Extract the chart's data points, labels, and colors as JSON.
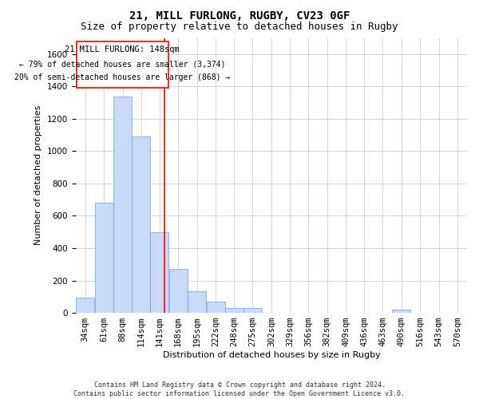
{
  "title": "21, MILL FURLONG, RUGBY, CV23 0GF",
  "subtitle": "Size of property relative to detached houses in Rugby",
  "xlabel": "Distribution of detached houses by size in Rugby",
  "ylabel": "Number of detached properties",
  "footer_line1": "Contains HM Land Registry data © Crown copyright and database right 2024.",
  "footer_line2": "Contains public sector information licensed under the Open Government Licence v3.0.",
  "annotation_line1": "21 MILL FURLONG: 148sqm",
  "annotation_line2": "← 79% of detached houses are smaller (3,374)",
  "annotation_line3": "20% of semi-detached houses are larger (868) →",
  "bar_color": "#c9daf8",
  "bar_edge_color": "#6d9eeb",
  "red_line_x": 148,
  "categories": [
    "34sqm",
    "61sqm",
    "88sqm",
    "114sqm",
    "141sqm",
    "168sqm",
    "195sqm",
    "222sqm",
    "248sqm",
    "275sqm",
    "302sqm",
    "329sqm",
    "356sqm",
    "382sqm",
    "409sqm",
    "436sqm",
    "463sqm",
    "490sqm",
    "516sqm",
    "543sqm",
    "570sqm"
  ],
  "bin_edges": [
    20.5,
    47.5,
    74.5,
    101.5,
    127.5,
    154.5,
    181.5,
    208.5,
    235.5,
    261.5,
    288.5,
    315.5,
    342.5,
    368.5,
    395.5,
    422.5,
    448.5,
    475.5,
    502.5,
    529.5,
    556.5,
    583.5
  ],
  "values": [
    95,
    680,
    1335,
    1090,
    500,
    270,
    135,
    70,
    30,
    30,
    0,
    0,
    0,
    0,
    0,
    0,
    0,
    20,
    0,
    0,
    0
  ],
  "ylim": [
    0,
    1700
  ],
  "yticks": [
    0,
    200,
    400,
    600,
    800,
    1000,
    1200,
    1400,
    1600
  ],
  "bg_color": "#ffffff",
  "grid_color": "#d0d0d0",
  "title_fontsize": 10,
  "subtitle_fontsize": 9,
  "xlabel_fontsize": 8,
  "ylabel_fontsize": 8,
  "tick_fontsize": 7.5,
  "footer_fontsize": 6,
  "annot_fontsize1": 7.5,
  "annot_fontsize2": 7
}
